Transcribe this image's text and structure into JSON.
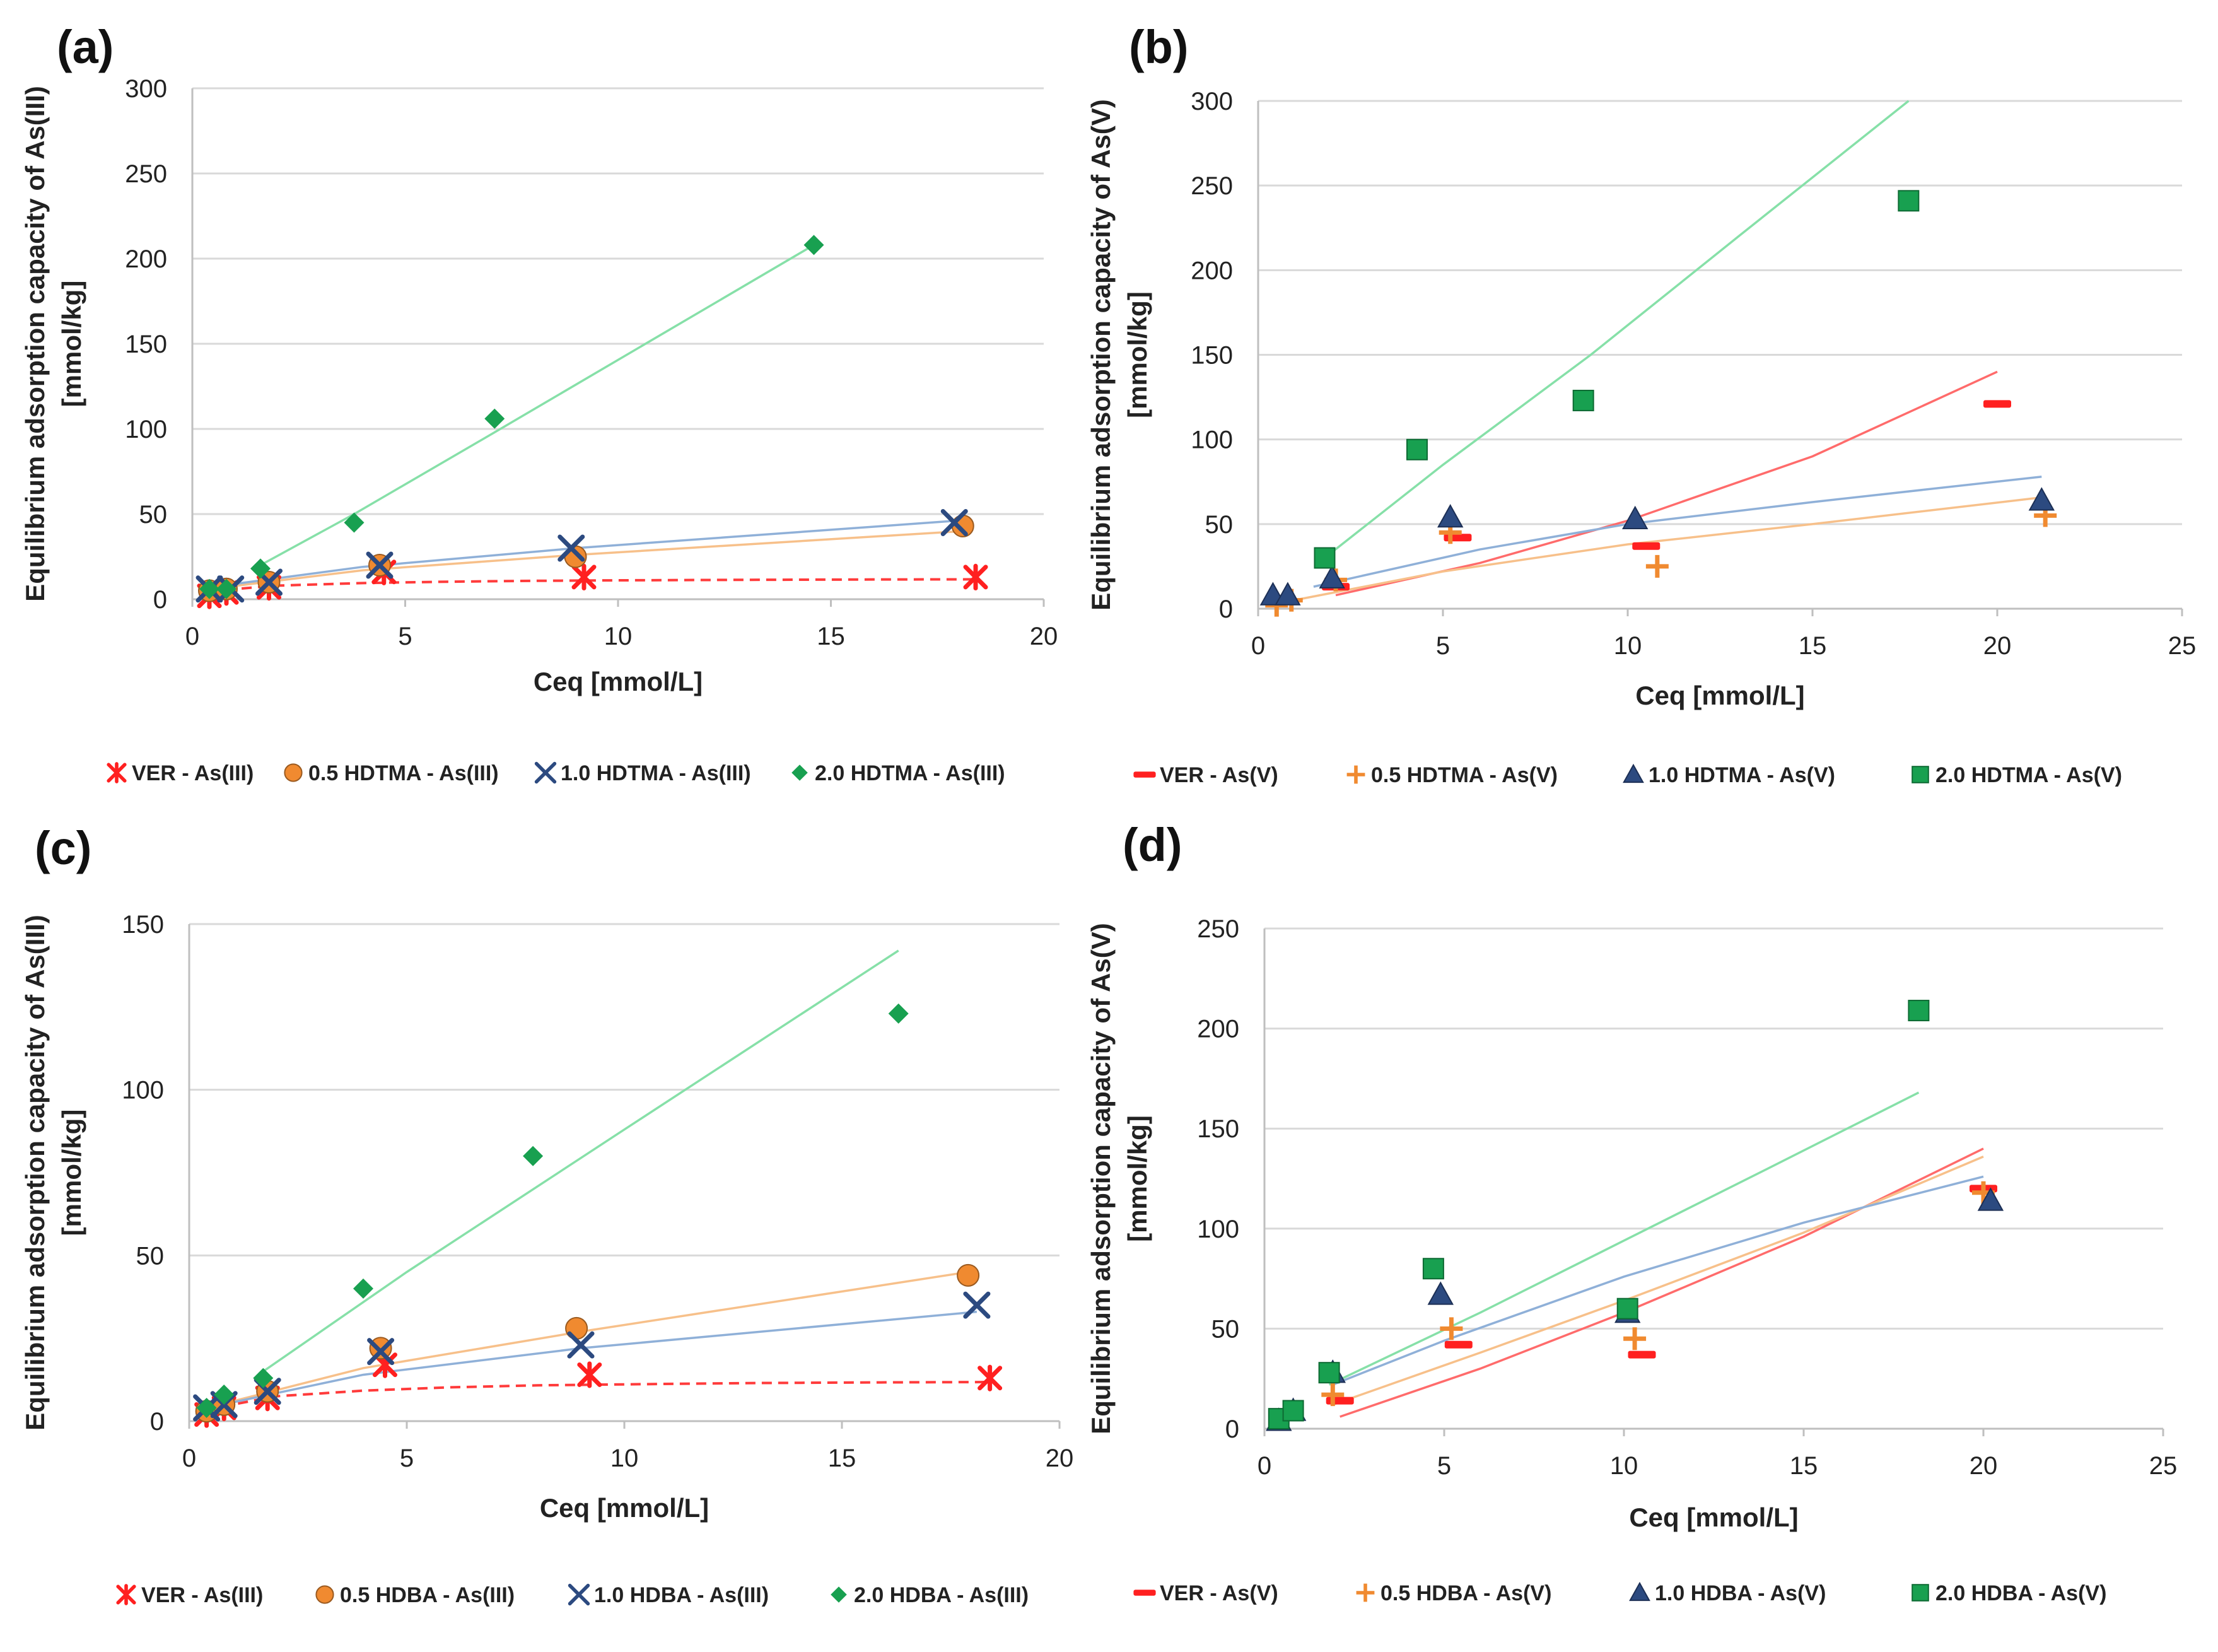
{
  "colors": {
    "red": "#ff2020",
    "orange": "#f08a30",
    "blue": "#2c4a80",
    "green": "#18a050",
    "fit_red": "#ff6b6b",
    "fit_orange": "#f7c08a",
    "fit_blue": "#8fb0d8",
    "fit_green": "#86e0a8"
  },
  "chart_data": [
    {
      "panel": "(a)",
      "type": "scatter",
      "xlabel": "Ceq [mmol/L]",
      "ylabel_lines": [
        "Equilibrium adsorption capacity of As(III)",
        "[mmol/kg]"
      ],
      "xlim": [
        0,
        20
      ],
      "ylim": [
        0,
        300
      ],
      "xticks": [
        0,
        5,
        10,
        15,
        20
      ],
      "yticks": [
        0,
        50,
        100,
        150,
        200,
        250,
        300
      ],
      "series": [
        {
          "name": "VER - As(III)",
          "color": "#ff2020",
          "marker": "asterisk",
          "x": [
            0.4,
            0.8,
            1.8,
            4.5,
            9.2,
            18.4
          ],
          "y": [
            2,
            4,
            7,
            16,
            13,
            13
          ],
          "fit": {
            "color": "#ff3b3b",
            "dashed": true,
            "x": [
              0.4,
              1,
              2,
              4,
              6,
              8,
              10,
              13,
              16,
              18.4
            ],
            "y": [
              3,
              6,
              8,
              9.5,
              10.3,
              10.8,
              11.1,
              11.4,
              11.6,
              11.7
            ]
          }
        },
        {
          "name": "0.5 HDTMA - As(III)",
          "color": "#f08a30",
          "marker": "circle",
          "x": [
            0.4,
            0.8,
            1.8,
            4.4,
            9.0,
            18.1
          ],
          "y": [
            5,
            6,
            10,
            20,
            25,
            43
          ],
          "fit": {
            "color": "#f7c08a",
            "dashed": false,
            "x": [
              0.4,
              4,
              9,
              18.1
            ],
            "y": [
              6,
              17,
              26,
              40
            ]
          }
        },
        {
          "name": "1.0 HDTMA - As(III)",
          "color": "#2c4a80",
          "marker": "x",
          "x": [
            0.4,
            0.9,
            1.8,
            4.4,
            8.9,
            17.9
          ],
          "y": [
            6,
            6,
            10,
            20,
            30,
            45
          ],
          "fit": {
            "color": "#8fb0d8",
            "dashed": false,
            "x": [
              0.4,
              4,
              9,
              17.9
            ],
            "y": [
              7,
              19,
              30,
              46
            ]
          }
        },
        {
          "name": "2.0 HDTMA - As(III)",
          "color": "#18a050",
          "marker": "diamond",
          "x": [
            0.4,
            0.8,
            1.6,
            3.8,
            7.1,
            14.6
          ],
          "y": [
            6,
            6,
            18,
            45,
            106,
            208
          ],
          "fit": {
            "color": "#86e0a8",
            "dashed": false,
            "x": [
              1.6,
              3.8,
              7.1,
              14.6
            ],
            "y": [
              20,
              50,
              98,
              208
            ]
          }
        }
      ]
    },
    {
      "panel": "(b)",
      "type": "scatter",
      "xlabel": "Ceq [mmol/L]",
      "ylabel_lines": [
        "Equilibrium adsorption capacity of As(V)",
        "[mmol/kg]"
      ],
      "xlim": [
        0,
        25
      ],
      "ylim": [
        0,
        300
      ],
      "xticks": [
        0,
        5,
        10,
        15,
        20,
        25
      ],
      "yticks": [
        0,
        50,
        100,
        150,
        200,
        250,
        300
      ],
      "series": [
        {
          "name": "VER - As(V)",
          "color": "#ff2020",
          "marker": "dash",
          "x": [
            2.1,
            5.4,
            10.5,
            20.0
          ],
          "y": [
            13,
            42,
            37,
            121
          ],
          "fit": {
            "color": "#ff6b6b",
            "dashed": false,
            "x": [
              2.1,
              6,
              10,
              15,
              20
            ],
            "y": [
              8,
              27,
              52,
              90,
              140
            ]
          }
        },
        {
          "name": "0.5 HDTMA - As(V)",
          "color": "#f08a30",
          "marker": "plus",
          "x": [
            0.5,
            0.9,
            2.1,
            5.2,
            10.8,
            21.3
          ],
          "y": [
            2,
            5,
            17,
            45,
            25,
            55
          ],
          "fit": {
            "color": "#f7c08a",
            "dashed": false,
            "x": [
              0.5,
              5,
              10,
              15,
              21.3
            ],
            "y": [
              3,
              22,
              38,
              50,
              66
            ]
          }
        },
        {
          "name": "1.0 HDTMA - As(V)",
          "color": "#2c4a80",
          "marker": "triangle",
          "x": [
            0.4,
            0.8,
            2.0,
            5.2,
            10.2,
            21.2
          ],
          "y": [
            8,
            8,
            18,
            54,
            53,
            64
          ],
          "fit": {
            "color": "#8fb0d8",
            "dashed": false,
            "x": [
              1.5,
              6,
              10,
              15,
              21.2
            ],
            "y": [
              13,
              35,
              50,
              63,
              78
            ]
          }
        },
        {
          "name": "2.0 HDTMA - As(V)",
          "color": "#18a050",
          "marker": "square",
          "x": [
            1.8,
            4.3,
            8.8,
            17.6
          ],
          "y": [
            30,
            94,
            123,
            241
          ],
          "fit": {
            "color": "#86e0a8",
            "dashed": false,
            "x": [
              1.8,
              5,
              9,
              13,
              17.6
            ],
            "y": [
              30,
              85,
              150,
              220,
              300
            ]
          }
        }
      ]
    },
    {
      "panel": "(c)",
      "type": "scatter",
      "xlabel": "Ceq [mmol/L]",
      "ylabel_lines": [
        "Equilibrium adsorption capacity of As(III)",
        "[mmol/kg]"
      ],
      "xlim": [
        0,
        20
      ],
      "ylim": [
        0,
        150
      ],
      "xticks": [
        0,
        5,
        10,
        15,
        20
      ],
      "yticks": [
        0,
        50,
        100,
        150
      ],
      "series": [
        {
          "name": "VER - As(III)",
          "color": "#ff2020",
          "marker": "asterisk",
          "x": [
            0.4,
            0.8,
            1.8,
            4.5,
            9.2,
            18.4
          ],
          "y": [
            2,
            4,
            7,
            17,
            14,
            13
          ],
          "fit": {
            "color": "#ff3b3b",
            "dashed": true,
            "x": [
              0.4,
              1,
              2,
              4,
              6,
              8,
              10,
              13,
              16,
              18.4
            ],
            "y": [
              2.5,
              5,
              7.5,
              9.2,
              10.2,
              10.8,
              11.1,
              11.5,
              11.7,
              11.8
            ]
          }
        },
        {
          "name": "0.5 HDBA - As(III)",
          "color": "#f08a30",
          "marker": "circle",
          "x": [
            0.4,
            0.8,
            1.8,
            4.4,
            8.9,
            17.9
          ],
          "y": [
            3,
            5,
            9,
            22,
            28,
            44
          ],
          "fit": {
            "color": "#f7c08a",
            "dashed": false,
            "x": [
              0.4,
              4,
              9,
              17.9
            ],
            "y": [
              4,
              16,
              27,
              45
            ]
          }
        },
        {
          "name": "1.0 HDBA - As(III)",
          "color": "#2c4a80",
          "marker": "x",
          "x": [
            0.4,
            0.8,
            1.8,
            4.4,
            9.0,
            18.1
          ],
          "y": [
            4,
            5,
            9,
            21,
            23,
            35
          ],
          "fit": {
            "color": "#8fb0d8",
            "dashed": false,
            "x": [
              0.4,
              4,
              9,
              18.1
            ],
            "y": [
              4,
              14,
              22,
              33
            ]
          }
        },
        {
          "name": "2.0 HDBA - As(III)",
          "color": "#18a050",
          "marker": "diamond",
          "x": [
            0.4,
            0.8,
            1.7,
            4.0,
            7.9,
            16.3
          ],
          "y": [
            4,
            8,
            13,
            40,
            80,
            123
          ],
          "fit": {
            "color": "#86e0a8",
            "dashed": false,
            "x": [
              1.7,
              5,
              10,
              16.3
            ],
            "y": [
              15,
              45,
              88,
              142
            ]
          }
        }
      ]
    },
    {
      "panel": "(d)",
      "type": "scatter",
      "xlabel": "Ceq [mmol/L]",
      "ylabel_lines": [
        "Equilibrium adsorption capacity of As(V)",
        "[mmol/kg]"
      ],
      "xlim": [
        0,
        25
      ],
      "ylim": [
        0,
        250
      ],
      "xticks": [
        0,
        5,
        10,
        15,
        20,
        25
      ],
      "yticks": [
        0,
        50,
        100,
        150,
        200,
        250
      ],
      "series": [
        {
          "name": "VER - As(V)",
          "color": "#ff2020",
          "marker": "dash",
          "x": [
            2.1,
            5.4,
            10.5,
            20.0
          ],
          "y": [
            14,
            42,
            37,
            120
          ],
          "fit": {
            "color": "#ff6b6b",
            "dashed": false,
            "x": [
              2.1,
              6,
              10,
              15,
              20
            ],
            "y": [
              6,
              30,
              58,
              96,
              140
            ]
          }
        },
        {
          "name": "0.5 HDBA - As(V)",
          "color": "#f08a30",
          "marker": "plus",
          "x": [
            1.9,
            5.2,
            10.3,
            20.0
          ],
          "y": [
            17,
            50,
            45,
            118
          ],
          "fit": {
            "color": "#f7c08a",
            "dashed": false,
            "x": [
              1.9,
              6,
              10,
              15,
              20
            ],
            "y": [
              12,
              38,
              64,
              98,
              136
            ]
          }
        },
        {
          "name": "1.0 HDBA - As(V)",
          "color": "#2c4a80",
          "marker": "triangle",
          "x": [
            0.4,
            0.8,
            1.9,
            4.9,
            10.1,
            20.2
          ],
          "y": [
            4,
            9,
            28,
            67,
            58,
            114
          ],
          "fit": {
            "color": "#8fb0d8",
            "dashed": false,
            "x": [
              1.9,
              5,
              10,
              15,
              20
            ],
            "y": [
              22,
              44,
              76,
              103,
              126
            ]
          }
        },
        {
          "name": "2.0 HDBA - As(V)",
          "color": "#18a050",
          "marker": "square",
          "x": [
            0.4,
            0.8,
            1.8,
            4.7,
            10.1,
            18.2
          ],
          "y": [
            5,
            9,
            28,
            80,
            60,
            209
          ],
          "fit": {
            "color": "#86e0a8",
            "dashed": false,
            "x": [
              1.8,
              6,
              10,
              14,
              18.2
            ],
            "y": [
              22,
              58,
              94,
              130,
              168
            ]
          }
        }
      ]
    }
  ]
}
